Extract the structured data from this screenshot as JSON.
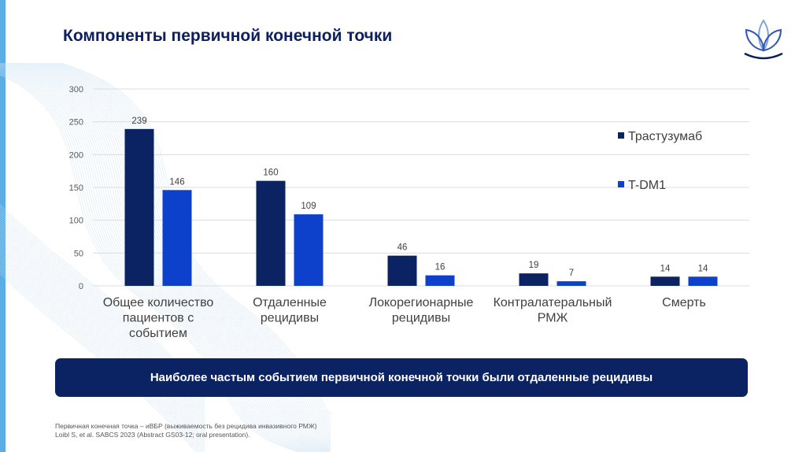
{
  "slide": {
    "title": "Компоненты первичной конечной точки",
    "logo_icon": "lotus-logo-icon",
    "banner_text": "Наиболее частым событием первичной конечной точки были отдаленные рецидивы",
    "footnote_line1": "Первичная конечная точка – иВБР (выживаемость без рецидива инвазивного РМЖ)",
    "footnote_line2": "Loibl S, et al. SABCS 2023 (Abstract GS03-12; oral presentation)."
  },
  "colors": {
    "accent_bar": "#5aaee3",
    "title": "#0c1f5e",
    "series_trastuzumab": "#0b2263",
    "series_tdm1": "#0d41cc",
    "banner": "#0b2263"
  },
  "chart_data": {
    "type": "bar",
    "title": "",
    "xlabel": "",
    "ylabel": "",
    "ylim": [
      0,
      300
    ],
    "yticks": [
      0,
      50,
      100,
      150,
      200,
      250,
      300
    ],
    "grid": true,
    "legend_position": "right",
    "categories": [
      [
        "Общее количество",
        "пациентов с",
        "событием"
      ],
      [
        "Отдаленные",
        "рецидивы"
      ],
      [
        "Локорегионарные",
        "рецидивы"
      ],
      [
        "Контралатеральный",
        "РМЖ"
      ],
      [
        "Смерть"
      ]
    ],
    "series": [
      {
        "name": "Трастузумаб",
        "color": "#0b2263",
        "values": [
          239,
          160,
          46,
          19,
          14
        ]
      },
      {
        "name": "T-DM1",
        "color": "#0d41cc",
        "values": [
          146,
          109,
          16,
          7,
          14
        ]
      }
    ]
  }
}
